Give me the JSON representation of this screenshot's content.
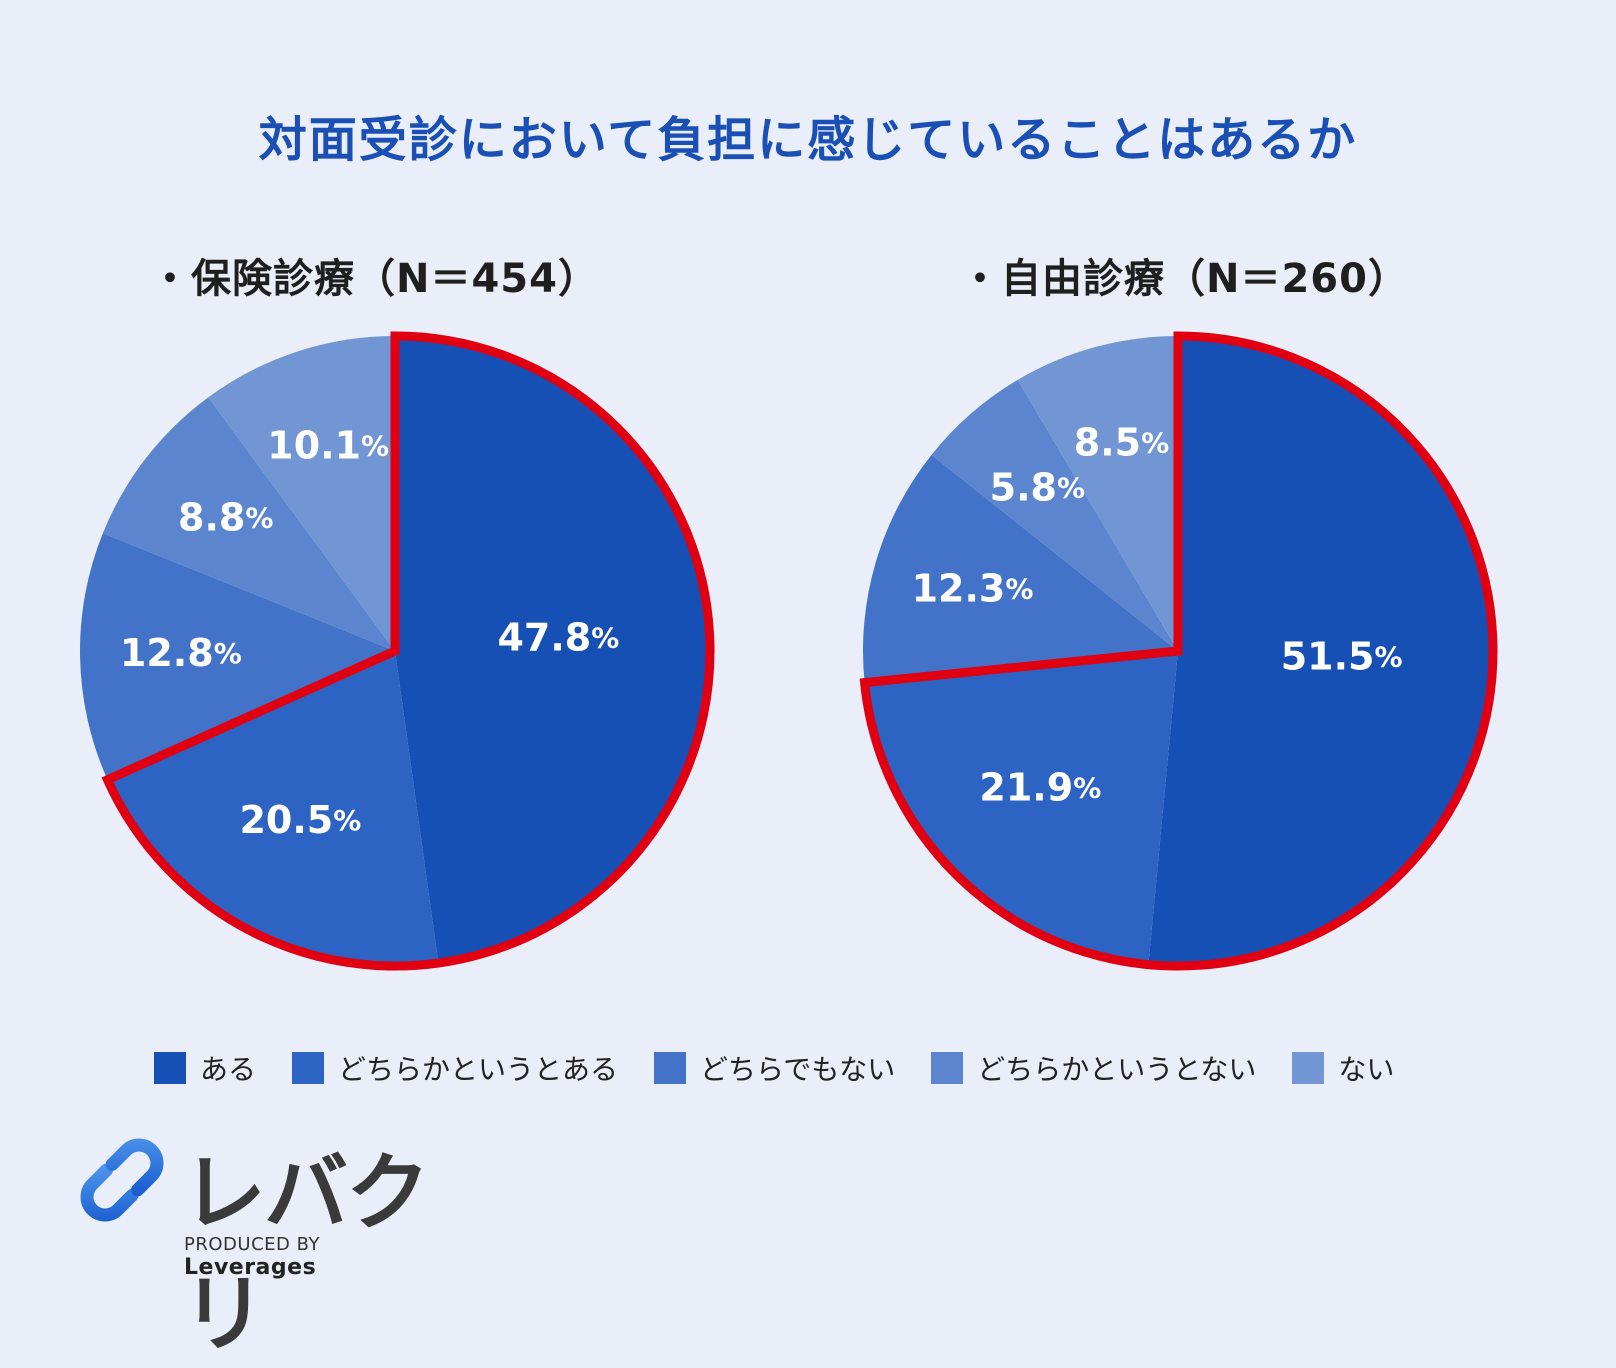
{
  "title": "対面受診において負担に感じていることはあるか",
  "chart_data": [
    {
      "type": "pie",
      "title": "・保険診療（N＝454）",
      "categories": [
        "ある",
        "どちらかというとある",
        "どちらでもない",
        "どちらかというとない",
        "ない"
      ],
      "values": [
        47.8,
        20.5,
        12.8,
        8.8,
        10.1
      ],
      "labels": [
        "47.8",
        "20.5",
        "12.8",
        "8.8",
        "10.1"
      ],
      "unit": "%",
      "highlighted": [
        "ある",
        "どちらかというとある"
      ]
    },
    {
      "type": "pie",
      "title": "・自由診療（N＝260）",
      "categories": [
        "ある",
        "どちらかというとある",
        "どちらでもない",
        "どちらかというとない",
        "ない"
      ],
      "values": [
        51.5,
        21.9,
        12.3,
        5.8,
        8.5
      ],
      "labels": [
        "51.5",
        "21.9",
        "12.3",
        "5.8",
        "8.5"
      ],
      "unit": "%",
      "highlighted": [
        "ある",
        "どちらかというとある"
      ]
    }
  ],
  "legend": {
    "placement": "bottom",
    "items": [
      {
        "label": "ある",
        "color": "#1650b4"
      },
      {
        "label": "どちらかというとある",
        "color": "#2d63c2"
      },
      {
        "label": "どちらでもない",
        "color": "#4373c8"
      },
      {
        "label": "どちらかというとない",
        "color": "#5b86cf"
      },
      {
        "label": "ない",
        "color": "#7295d4"
      }
    ]
  },
  "highlight_color": "#e00012",
  "logo": {
    "name": "レバクリ",
    "sub_prefix": "PRODUCED BY",
    "sub_brand": "Leverages"
  }
}
